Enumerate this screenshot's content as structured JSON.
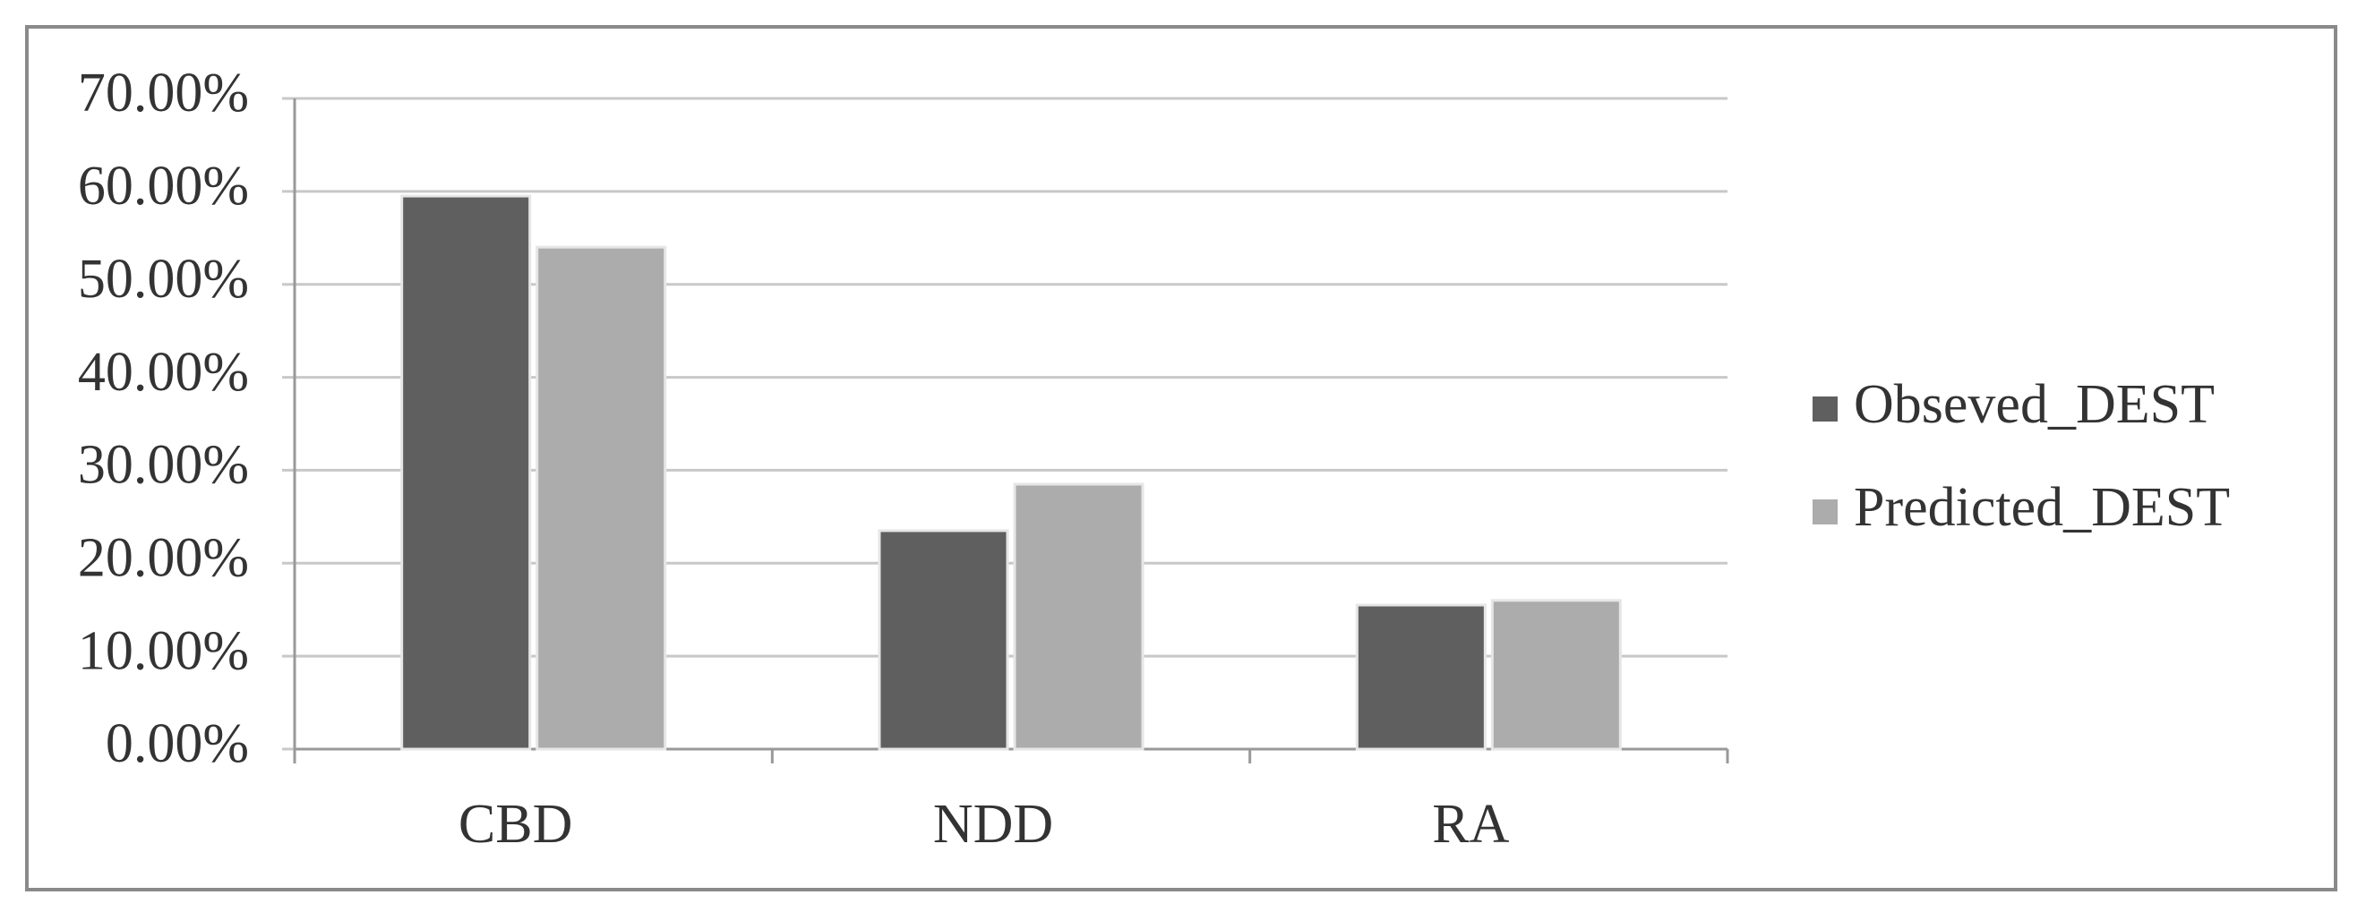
{
  "chart_data": {
    "type": "bar",
    "categories": [
      "CBD",
      "NDD",
      "RA"
    ],
    "series": [
      {
        "name": "Obseved_DEST",
        "color": "#5f5f5f",
        "values": [
          59.5,
          23.5,
          15.5
        ]
      },
      {
        "name": "Predicted_DEST",
        "color": "#acacac",
        "values": [
          54,
          28.5,
          16
        ]
      }
    ],
    "ylim": [
      0,
      70
    ],
    "yticks": [
      {
        "value": 0,
        "label": "0.00%"
      },
      {
        "value": 10,
        "label": "10.00%"
      },
      {
        "value": 20,
        "label": "20.00%"
      },
      {
        "value": 30,
        "label": "30.00%"
      },
      {
        "value": 40,
        "label": "40.00%"
      },
      {
        "value": 50,
        "label": "50.00%"
      },
      {
        "value": 60,
        "label": "60.00%"
      },
      {
        "value": 70,
        "label": "70.00%"
      }
    ],
    "grid": true,
    "legend": "right"
  }
}
